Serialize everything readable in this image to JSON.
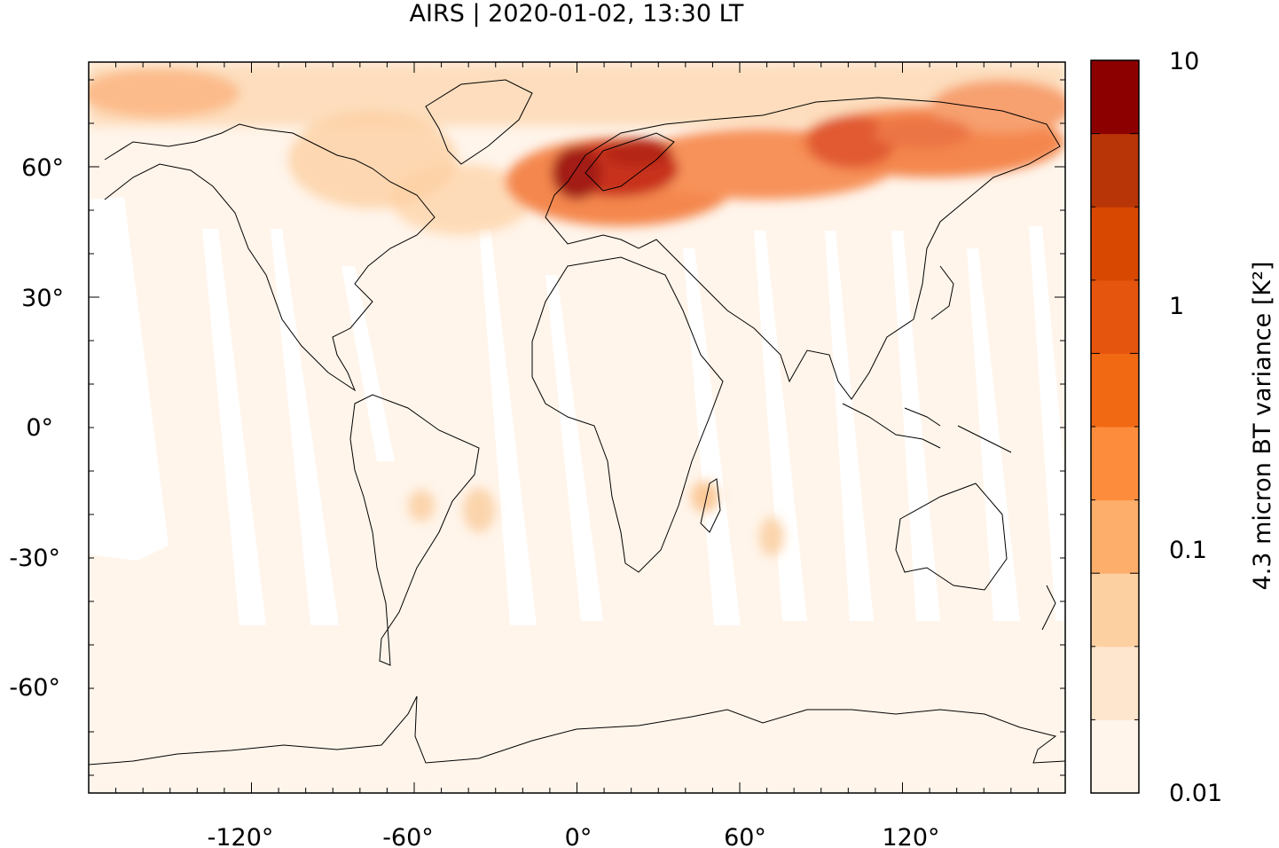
{
  "title": "AIRS | 2020-01-02, 13:30 LT",
  "map": {
    "lon_ticks": [
      "-120°",
      "-60°",
      "0°",
      "60°",
      "120°"
    ],
    "lat_ticks": [
      "60°",
      "30°",
      "0°",
      "-30°",
      "-60°"
    ],
    "background_color": "#fff5eb",
    "swath_gap_color": "#ffffff",
    "coastline_color": "#000000"
  },
  "colorbar": {
    "label": "4.3 micron BT variance [K²]",
    "tick_labels": [
      "10",
      "1",
      "0.1",
      "0.01"
    ],
    "scale": "log",
    "range": [
      0.01,
      10
    ],
    "colors": [
      "#fff5eb",
      "#fee6ce",
      "#fdd0a2",
      "#fdae6b",
      "#fd8d3c",
      "#f16913",
      "#e6550d",
      "#d94801",
      "#b83508",
      "#8c0000"
    ]
  }
}
